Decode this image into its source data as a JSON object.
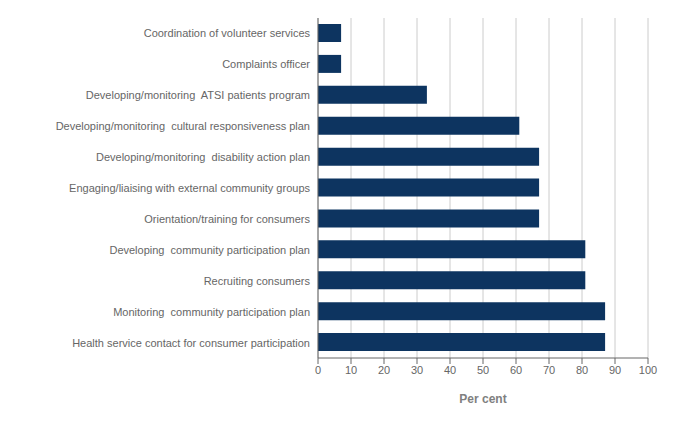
{
  "chart_data": {
    "type": "bar",
    "orientation": "horizontal",
    "categories": [
      "Health service contact for consumer participation",
      "Monitoring  community participation plan",
      "Recruiting consumers",
      "Developing  community participation plan",
      "Orientation/training for consumers",
      "Engaging/liaising with external community groups",
      "Developing/monitoring  disability action plan",
      "Developing/monitoring  cultural responsiveness plan",
      "Developing/monitoring  ATSI patients program",
      "Complaints officer",
      "Coordination of volunteer services"
    ],
    "values": [
      87,
      87,
      81,
      81,
      67,
      67,
      67,
      61,
      33,
      7,
      7
    ],
    "color": "#0d3460",
    "xlabel": "Per cent",
    "xlim": [
      0,
      100
    ],
    "xticks": [
      0,
      10,
      20,
      30,
      40,
      50,
      60,
      70,
      80,
      90,
      100
    ],
    "grid": true
  }
}
